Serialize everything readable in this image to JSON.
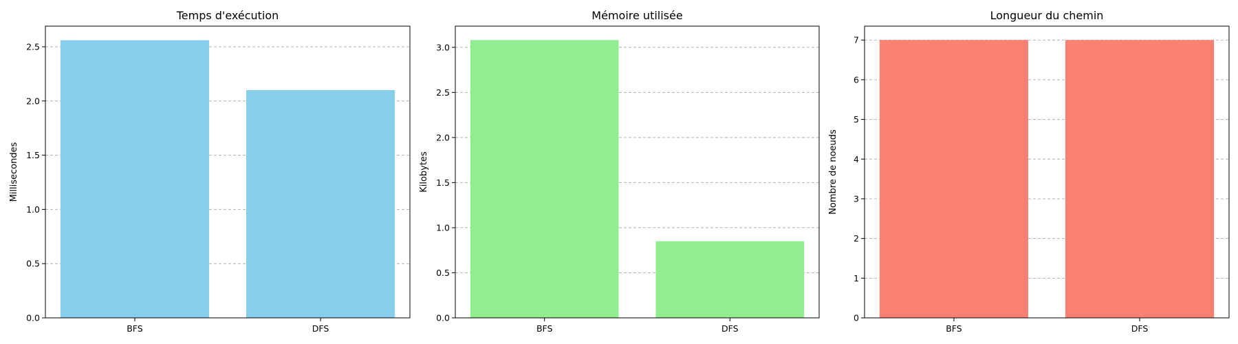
{
  "chart_data": [
    {
      "type": "bar",
      "title": "Temps d'exécution",
      "ylabel": "Millisecondes",
      "categories": [
        "BFS",
        "DFS"
      ],
      "values": [
        2.56,
        2.1
      ],
      "ylim": [
        0,
        2.69
      ],
      "yticks": [
        "0.0",
        "0.5",
        "1.0",
        "1.5",
        "2.0",
        "2.5"
      ],
      "ytick_values": [
        0,
        0.5,
        1.0,
        1.5,
        2.0,
        2.5
      ],
      "color": "#87CEEB",
      "grid": "y-dashed"
    },
    {
      "type": "bar",
      "title": "Mémoire utilisée",
      "ylabel": "Kilobytes",
      "categories": [
        "BFS",
        "DFS"
      ],
      "values": [
        3.08,
        0.85
      ],
      "ylim": [
        0,
        3.235
      ],
      "yticks": [
        "0.0",
        "0.5",
        "1.0",
        "1.5",
        "2.0",
        "2.5",
        "3.0"
      ],
      "ytick_values": [
        0,
        0.5,
        1.0,
        1.5,
        2.0,
        2.5,
        3.0
      ],
      "color": "#90EE90",
      "grid": "y-dashed"
    },
    {
      "type": "bar",
      "title": "Longueur du chemin",
      "ylabel": "Nombre de noeuds",
      "categories": [
        "BFS",
        "DFS"
      ],
      "values": [
        7,
        7
      ],
      "ylim": [
        0,
        7.35
      ],
      "yticks": [
        "0",
        "1",
        "2",
        "3",
        "4",
        "5",
        "6",
        "7"
      ],
      "ytick_values": [
        0,
        1,
        2,
        3,
        4,
        5,
        6,
        7
      ],
      "color": "#FA8072",
      "grid": "y-dashed"
    }
  ]
}
